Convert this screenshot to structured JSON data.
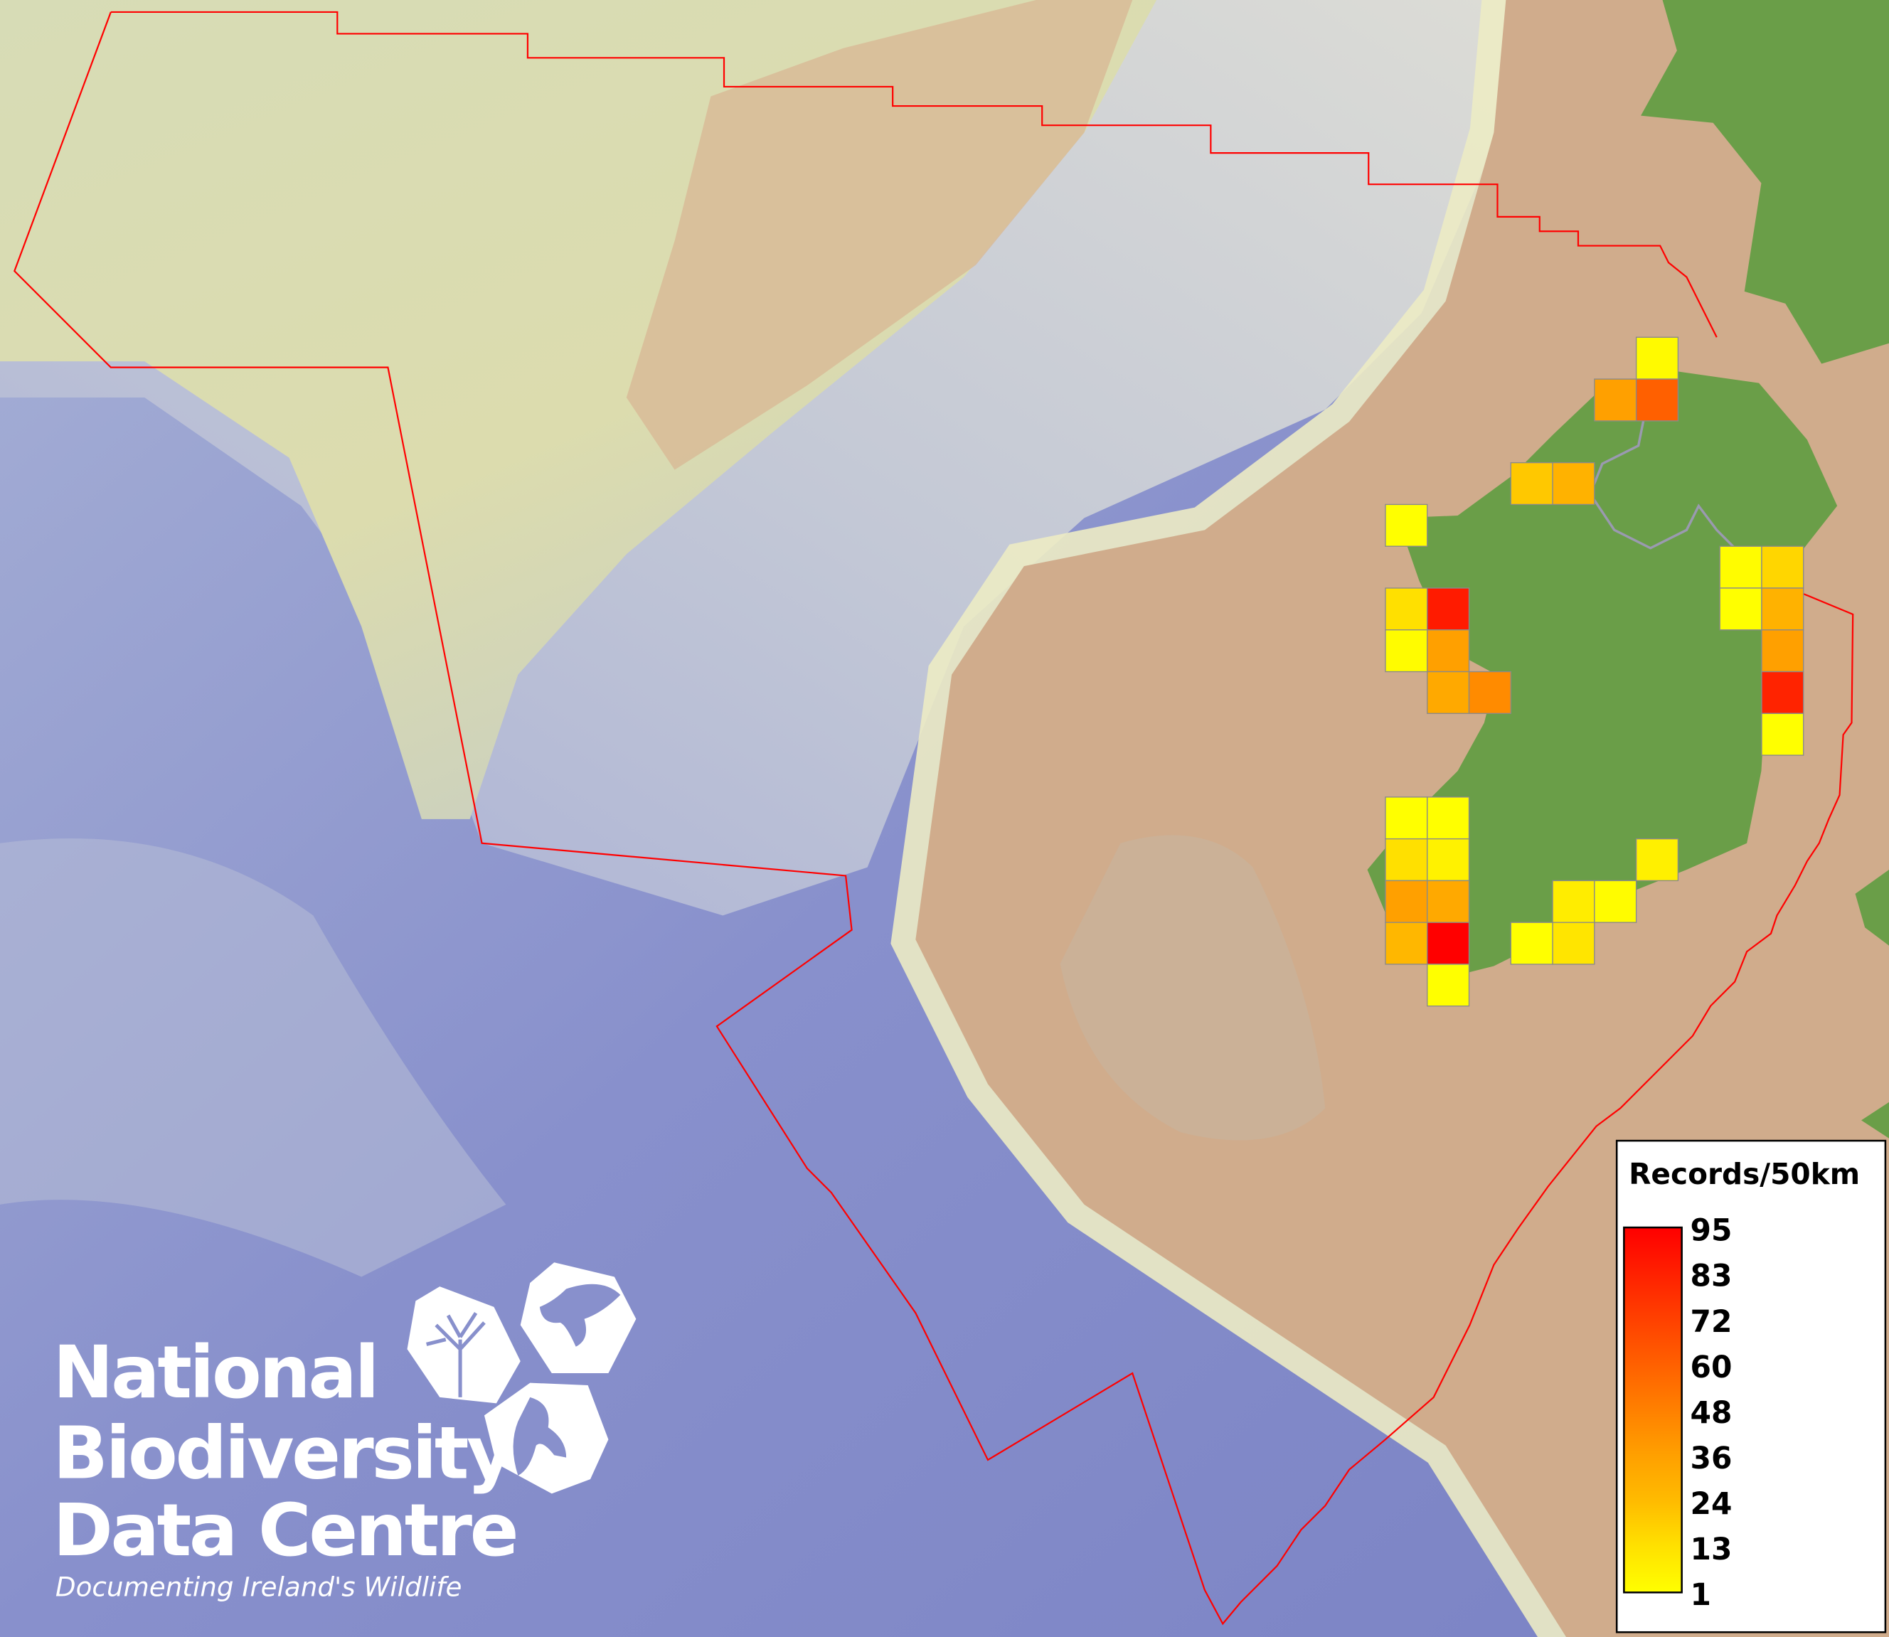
{
  "logo": {
    "line1": "National",
    "line2": "Biodiversity",
    "line3": "Data Centre",
    "tagline": "Documenting Ireland's Wildlife"
  },
  "legend": {
    "title": "Records/50km",
    "ticks": [
      "95",
      "83",
      "72",
      "60",
      "48",
      "36",
      "24",
      "13",
      "1"
    ],
    "color_low": "#ffff00",
    "color_high": "#ff0000",
    "colormap": [
      {
        "value": 1,
        "color": "#ffff00"
      },
      {
        "value": 13,
        "color": "#ffe000"
      },
      {
        "value": 24,
        "color": "#ffbb00"
      },
      {
        "value": 36,
        "color": "#ffa000"
      },
      {
        "value": 48,
        "color": "#ff8000"
      },
      {
        "value": 60,
        "color": "#ff6000"
      },
      {
        "value": 72,
        "color": "#ff4000"
      },
      {
        "value": 83,
        "color": "#ff2000"
      },
      {
        "value": 95,
        "color": "#ff0000"
      }
    ]
  },
  "map": {
    "cell_size": "50km",
    "boundary_color": "#ff0000",
    "land_color": "#6a9e48",
    "grid_records": [
      [
        null,
        null,
        null,
        null,
        null,
        null,
        3,
        null,
        null,
        null
      ],
      [
        null,
        null,
        null,
        null,
        null,
        36,
        60,
        null,
        null,
        null
      ],
      [
        null,
        null,
        null,
        null,
        null,
        null,
        null,
        null,
        null,
        null
      ],
      [
        null,
        null,
        null,
        20,
        28,
        null,
        null,
        null,
        null,
        null
      ],
      [
        1,
        null,
        null,
        null,
        null,
        null,
        null,
        null,
        null,
        null
      ],
      [
        null,
        null,
        null,
        null,
        null,
        null,
        null,
        null,
        2,
        16
      ],
      [
        13,
        85,
        null,
        null,
        null,
        null,
        null,
        null,
        1,
        28
      ],
      [
        2,
        36,
        null,
        null,
        null,
        null,
        null,
        null,
        null,
        36
      ],
      [
        null,
        32,
        44,
        null,
        null,
        null,
        null,
        null,
        null,
        82
      ],
      [
        null,
        null,
        null,
        null,
        null,
        null,
        null,
        null,
        null,
        1
      ],
      [
        null,
        null,
        null,
        null,
        null,
        null,
        null,
        null,
        null,
        null
      ],
      [
        1,
        1,
        null,
        null,
        null,
        null,
        null,
        null,
        null,
        null
      ],
      [
        13,
        6,
        null,
        null,
        null,
        null,
        7,
        null,
        null,
        null
      ],
      [
        36,
        32,
        null,
        null,
        8,
        2,
        null,
        null,
        null,
        null
      ],
      [
        26,
        95,
        null,
        1,
        11,
        null,
        null,
        null,
        null,
        null
      ],
      [
        null,
        1,
        null,
        null,
        null,
        null,
        null,
        null,
        null,
        null
      ]
    ]
  }
}
